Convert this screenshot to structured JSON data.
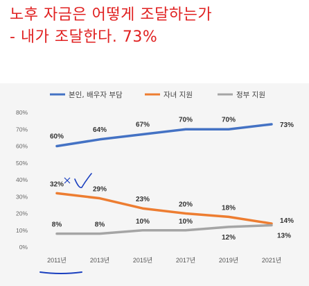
{
  "title_lines": [
    "노후 자금은 어떻게 조달하는가",
    "- 내가 조달한다. 73%"
  ],
  "chart_data": {
    "type": "line",
    "categories": [
      "2011년",
      "2013년",
      "2015년",
      "2017년",
      "2019년",
      "2021년"
    ],
    "ylim": [
      0,
      80
    ],
    "yticks": [
      "0%",
      "10%",
      "20%",
      "30%",
      "40%",
      "50%",
      "60%",
      "70%",
      "80%"
    ],
    "grid": false,
    "legend_position": "top",
    "series": [
      {
        "name": "본인, 배우자 부담",
        "color": "#4472c4",
        "values": [
          60,
          64,
          67,
          70,
          70,
          73
        ],
        "labels": [
          "60%",
          "64%",
          "67%",
          "70%",
          "70%",
          "73%"
        ]
      },
      {
        "name": "자녀 지원",
        "color": "#ed7d31",
        "values": [
          32,
          29,
          23,
          20,
          18,
          14
        ],
        "labels": [
          "32%",
          "29%",
          "23%",
          "20%",
          "18%",
          "14%"
        ]
      },
      {
        "name": "정부 지원",
        "color": "#a5a5a5",
        "values": [
          8,
          8,
          10,
          10,
          12,
          13
        ],
        "labels": [
          "8%",
          "8%",
          "10%",
          "10%",
          "12%",
          "13%"
        ]
      }
    ]
  },
  "annotation_colors": {
    "pen": "#1a3fbf"
  }
}
